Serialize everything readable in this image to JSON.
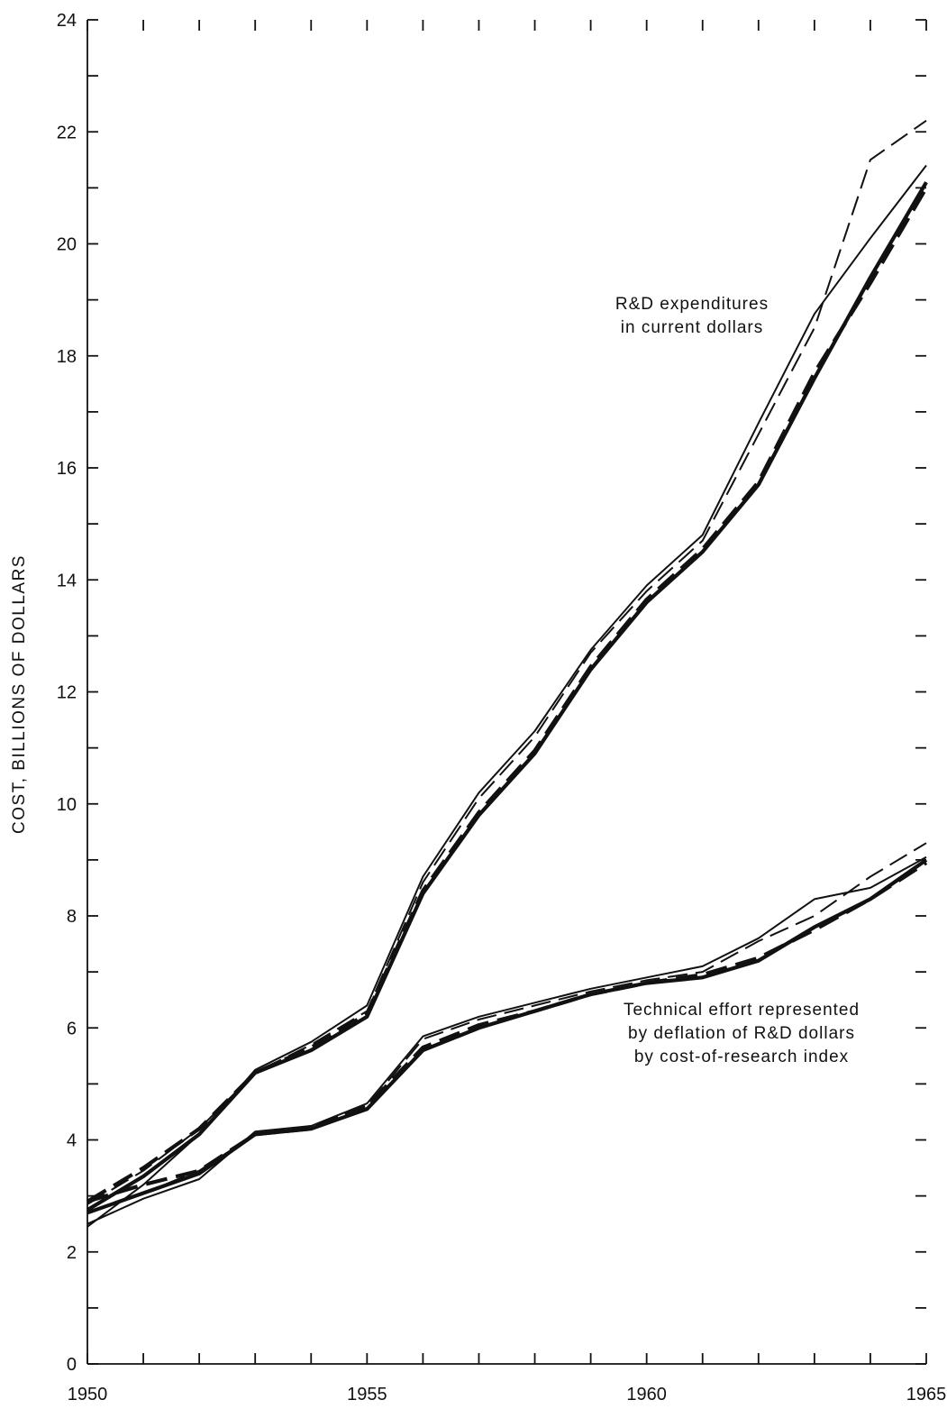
{
  "chart_data": {
    "type": "line",
    "title": "",
    "xlabel": "",
    "ylabel": "COST, BILLIONS OF DOLLARS",
    "xlim": [
      1950,
      1965
    ],
    "ylim": [
      0,
      24
    ],
    "x_ticks": [
      1950,
      1955,
      1960,
      1965
    ],
    "y_ticks": [
      0,
      2,
      4,
      6,
      8,
      10,
      12,
      14,
      16,
      18,
      20,
      22,
      24
    ],
    "grid": false,
    "annotations": [
      {
        "id": "current",
        "lines": [
          "R&D expenditures",
          "in current dollars"
        ]
      },
      {
        "id": "deflated",
        "lines": [
          "Technical effort represented",
          "by deflation of R&D dollars",
          "by cost-of-research index"
        ]
      }
    ],
    "series": [
      {
        "style": "solid-thin",
        "x": [
          1950,
          1951,
          1952,
          1953,
          1954,
          1955,
          1956,
          1957,
          1958,
          1959,
          1960,
          1961,
          1962,
          1963,
          1964,
          1965
        ],
        "values": [
          2.45,
          3.2,
          4.1,
          5.25,
          5.75,
          6.4,
          8.7,
          10.2,
          11.3,
          12.75,
          13.9,
          14.8,
          16.8,
          18.75,
          20.1,
          21.4
        ]
      },
      {
        "style": "dashed-thin",
        "x": [
          1950,
          1951,
          1952,
          1953,
          1954,
          1955,
          1956,
          1957,
          1958,
          1959,
          1960,
          1961,
          1962,
          1963,
          1964,
          1965
        ],
        "values": [
          2.85,
          3.45,
          4.2,
          5.2,
          5.7,
          6.3,
          8.6,
          10.1,
          11.2,
          12.7,
          13.8,
          14.7,
          16.6,
          18.5,
          21.5,
          22.2
        ]
      },
      {
        "style": "solid-thick",
        "x": [
          1950,
          1951,
          1952,
          1953,
          1954,
          1955,
          1956,
          1957,
          1958,
          1959,
          1960,
          1961,
          1962,
          1963,
          1964,
          1965
        ],
        "values": [
          2.75,
          3.35,
          4.1,
          5.2,
          5.6,
          6.2,
          8.4,
          9.8,
          10.9,
          12.4,
          13.6,
          14.5,
          15.7,
          17.6,
          19.4,
          21.1
        ]
      },
      {
        "style": "dashed-thick",
        "x": [
          1950,
          1951,
          1952,
          1953,
          1954,
          1955,
          1956,
          1957,
          1958,
          1959,
          1960,
          1961,
          1962,
          1963,
          1964,
          1965
        ],
        "values": [
          2.9,
          3.5,
          4.2,
          5.2,
          5.65,
          6.25,
          8.45,
          9.85,
          10.95,
          12.45,
          13.65,
          14.55,
          15.75,
          17.7,
          19.3,
          21.0
        ]
      },
      {
        "style": "solid-thin",
        "x": [
          1950,
          1951,
          1952,
          1953,
          1954,
          1955,
          1956,
          1957,
          1958,
          1959,
          1960,
          1961,
          1962,
          1963,
          1964,
          1965
        ],
        "values": [
          2.5,
          2.95,
          3.3,
          4.15,
          4.25,
          4.65,
          5.85,
          6.2,
          6.45,
          6.7,
          6.9,
          7.1,
          7.6,
          8.3,
          8.5,
          9.05
        ]
      },
      {
        "style": "dashed-thin",
        "x": [
          1950,
          1951,
          1952,
          1953,
          1954,
          1955,
          1956,
          1957,
          1958,
          1959,
          1960,
          1961,
          1962,
          1963,
          1964,
          1965
        ],
        "values": [
          2.7,
          3.05,
          3.45,
          4.1,
          4.25,
          4.6,
          5.8,
          6.15,
          6.4,
          6.65,
          6.85,
          7.0,
          7.55,
          8.0,
          8.7,
          9.3
        ]
      },
      {
        "style": "solid-thick",
        "x": [
          1950,
          1951,
          1952,
          1953,
          1954,
          1955,
          1956,
          1957,
          1958,
          1959,
          1960,
          1961,
          1962,
          1963,
          1964,
          1965
        ],
        "values": [
          2.7,
          3.05,
          3.4,
          4.1,
          4.2,
          4.55,
          5.6,
          6.0,
          6.3,
          6.6,
          6.8,
          6.9,
          7.2,
          7.8,
          8.3,
          9.0
        ]
      },
      {
        "style": "dashed-thick",
        "x": [
          1950,
          1951,
          1952,
          1953,
          1954,
          1955,
          1956,
          1957,
          1958,
          1959,
          1960,
          1961,
          1962,
          1963,
          1964,
          1965
        ],
        "values": [
          2.9,
          3.2,
          3.45,
          4.1,
          4.2,
          4.6,
          5.65,
          6.05,
          6.3,
          6.6,
          6.8,
          6.95,
          7.25,
          7.75,
          8.3,
          8.95
        ]
      }
    ]
  }
}
